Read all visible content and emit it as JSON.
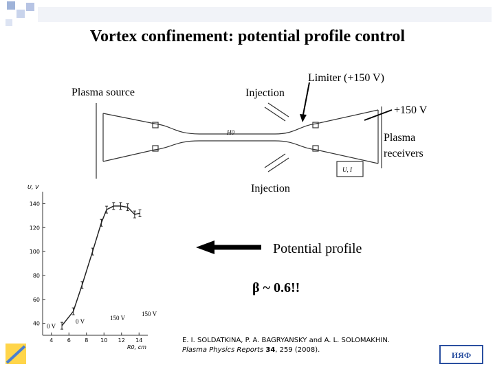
{
  "title": "Vortex confinement: potential profile control",
  "diagram": {
    "plasma_source": "Plasma source",
    "injection_top": "Injection",
    "limiter": "Limiter (+150 V)",
    "receiver_voltage": "+150 V",
    "receivers_line1": "Plasma",
    "receivers_line2": "receivers",
    "injection_bottom": "Injection",
    "field": "H0",
    "meter": "U, I"
  },
  "chart_data": {
    "type": "line",
    "y_label": "U, V",
    "x_label": "R0, cm",
    "x": [
      5.2,
      6.5,
      7.5,
      8.7,
      9.7,
      10.3,
      11.1,
      11.9,
      12.7,
      13.5,
      14.1
    ],
    "values": [
      38,
      50,
      72,
      100,
      124,
      135,
      138,
      138,
      137,
      131,
      132
    ],
    "color": "#222222",
    "xlim": [
      3,
      15
    ],
    "xticks": [
      4,
      6,
      8,
      10,
      12,
      14
    ],
    "ylim": [
      30,
      150
    ],
    "yticks": [
      40,
      60,
      80,
      100,
      120,
      140
    ],
    "annotations": [
      "0 V",
      "0 V",
      "150 V",
      "150 V"
    ]
  },
  "arrow_label": "Potential profile",
  "beta": "β ~ 0.6!!",
  "citation": {
    "authors": "E. I. SOLDATKINA, P. A. BAGRYANSKY and A. L. SOLOMAKHIN.",
    "journal": "Plasma Physics Reports",
    "volume": "34",
    "rest": ", 259 (2008)."
  }
}
